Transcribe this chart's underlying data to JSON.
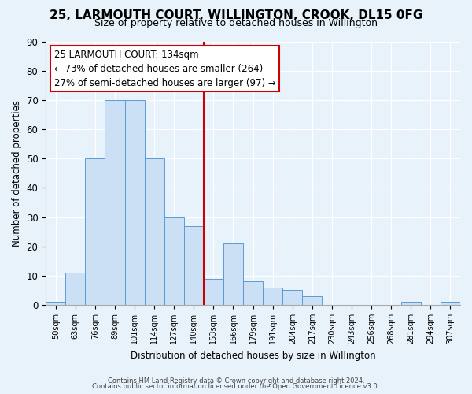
{
  "title": "25, LARMOUTH COURT, WILLINGTON, CROOK, DL15 0FG",
  "subtitle": "Size of property relative to detached houses in Willington",
  "xlabel": "Distribution of detached houses by size in Willington",
  "ylabel": "Number of detached properties",
  "bar_labels": [
    "50sqm",
    "63sqm",
    "76sqm",
    "89sqm",
    "101sqm",
    "114sqm",
    "127sqm",
    "140sqm",
    "153sqm",
    "166sqm",
    "179sqm",
    "191sqm",
    "204sqm",
    "217sqm",
    "230sqm",
    "243sqm",
    "256sqm",
    "268sqm",
    "281sqm",
    "294sqm",
    "307sqm"
  ],
  "bar_values": [
    1,
    11,
    50,
    70,
    70,
    50,
    30,
    27,
    9,
    21,
    8,
    6,
    5,
    3,
    0,
    0,
    0,
    0,
    1,
    0,
    1
  ],
  "bar_color": "#cce0f5",
  "bar_edge_color": "#5b9bd5",
  "ref_line_x": 7.5,
  "reference_line_color": "#cc0000",
  "ylim": [
    0,
    90
  ],
  "yticks": [
    0,
    10,
    20,
    30,
    40,
    50,
    60,
    70,
    80,
    90
  ],
  "annotation_title": "25 LARMOUTH COURT: 134sqm",
  "annotation_line1": "← 73% of detached houses are smaller (264)",
  "annotation_line2": "27% of semi-detached houses are larger (97) →",
  "annotation_box_color": "#ffffff",
  "annotation_box_edge": "#cc0000",
  "footer_line1": "Contains HM Land Registry data © Crown copyright and database right 2024.",
  "footer_line2": "Contains public sector information licensed under the Open Government Licence v3.0.",
  "bg_color": "#e8f2fb",
  "plot_bg_color": "#e8f2fb",
  "grid_color": "#ffffff"
}
